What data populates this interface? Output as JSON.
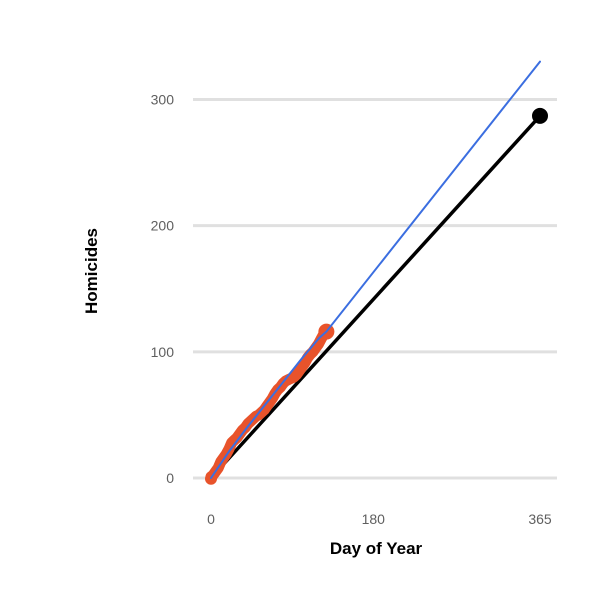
{
  "chart_data": {
    "type": "line",
    "title": "",
    "xlabel": "Day of Year",
    "ylabel": "Homicides",
    "xlim": [
      0,
      365
    ],
    "ylim": [
      0,
      330
    ],
    "x_ticks": [
      0,
      180,
      365
    ],
    "y_ticks": [
      0,
      100,
      200,
      300
    ],
    "grid": "horizontal",
    "legend": "none",
    "series": [
      {
        "role": "actual",
        "color": "#e8532b",
        "style": "thick-line",
        "x": [
          0,
          2,
          5,
          8,
          11,
          14,
          17,
          20,
          23,
          26,
          29,
          32,
          35,
          38,
          41,
          44,
          47,
          50,
          53,
          56,
          59,
          62,
          65,
          68,
          71,
          74,
          77,
          80,
          83,
          86,
          89,
          92,
          95,
          98,
          101,
          104,
          107,
          110,
          113,
          116,
          119,
          122,
          125,
          128
        ],
        "y": [
          1,
          2,
          5,
          8,
          13,
          16,
          19,
          23,
          28,
          30,
          32,
          35,
          38,
          40,
          43,
          45,
          47,
          49,
          50,
          52,
          54,
          57,
          60,
          63,
          67,
          70,
          72,
          75,
          77,
          78,
          79,
          80,
          82,
          85,
          88,
          91,
          95,
          98,
          100,
          103,
          106,
          110,
          114,
          116
        ]
      },
      {
        "role": "projection",
        "color": "#3b6ee0",
        "style": "thin-line",
        "x": [
          0,
          20,
          40,
          60,
          80,
          100,
          120,
          128,
          365
        ],
        "y": [
          0,
          21,
          40,
          58,
          76,
          94,
          111,
          116,
          330
        ]
      },
      {
        "role": "pace",
        "color": "#000000",
        "style": "thick-line",
        "x": [
          0,
          365
        ],
        "y": [
          0,
          287
        ],
        "end_marker": true
      }
    ]
  }
}
